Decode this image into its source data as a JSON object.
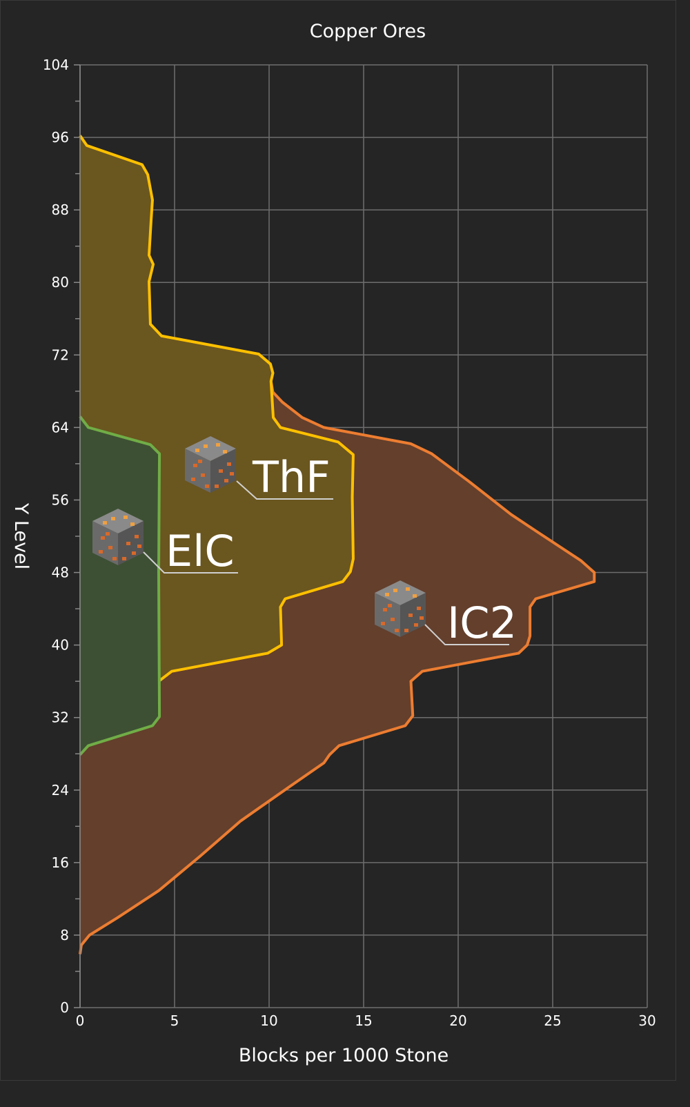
{
  "chart_data": {
    "type": "area",
    "title": "Copper Ores",
    "xlabel": "Blocks per 1000 Stone",
    "ylabel": "Y Level",
    "xlim": [
      0,
      30
    ],
    "ylim": [
      0,
      104
    ],
    "x_ticks": [
      "0",
      "5",
      "10",
      "15",
      "20",
      "25",
      "30"
    ],
    "y_ticks": [
      "0",
      "8",
      "16",
      "24",
      "32",
      "40",
      "48",
      "56",
      "64",
      "72",
      "80",
      "88",
      "96",
      "104"
    ],
    "grid": true,
    "orientation": "horizontal-profile",
    "background": "#252525",
    "series": [
      {
        "name": "IC2",
        "line_color": "#ed7d31",
        "fill_color": "#633f2c",
        "points": [
          [
            10.1,
            69.1
          ],
          [
            10.2,
            67.9
          ],
          [
            10.7,
            66.8
          ],
          [
            11.75,
            65.1
          ],
          [
            12.9,
            64.0
          ],
          [
            17.5,
            62.2
          ],
          [
            18.6,
            61.1
          ],
          [
            20.6,
            58.0
          ],
          [
            22.8,
            54.4
          ],
          [
            24.1,
            52.6
          ],
          [
            26.5,
            49.3
          ],
          [
            27.2,
            48.0
          ],
          [
            27.2,
            47.0
          ],
          [
            24.1,
            45.1
          ],
          [
            23.8,
            44.2
          ],
          [
            23.8,
            41.0
          ],
          [
            23.65,
            40.0
          ],
          [
            23.2,
            39.1
          ],
          [
            18.1,
            37.1
          ],
          [
            17.5,
            36.0
          ],
          [
            17.6,
            32.2
          ],
          [
            17.2,
            31.1
          ],
          [
            13.7,
            28.9
          ],
          [
            13.2,
            27.9
          ],
          [
            12.9,
            27.0
          ],
          [
            11.1,
            24.4
          ],
          [
            8.5,
            20.6
          ],
          [
            6.35,
            16.7
          ],
          [
            4.16,
            12.9
          ],
          [
            1.97,
            9.9
          ],
          [
            0.5,
            8.0
          ],
          [
            0.07,
            6.9
          ],
          [
            0,
            5.9
          ]
        ]
      },
      {
        "name": "ThF",
        "line_color": "#ffc000",
        "fill_color": "#6a561f",
        "points": [
          [
            0,
            96.2
          ],
          [
            0.36,
            95.1
          ],
          [
            3.28,
            93.0
          ],
          [
            3.58,
            91.9
          ],
          [
            3.83,
            89.1
          ],
          [
            3.76,
            86.9
          ],
          [
            3.65,
            83.0
          ],
          [
            3.87,
            82.0
          ],
          [
            3.65,
            80.1
          ],
          [
            3.72,
            75.4
          ],
          [
            4.31,
            74.1
          ],
          [
            9.45,
            72.1
          ],
          [
            10.07,
            71.0
          ],
          [
            10.2,
            70.0
          ],
          [
            10.1,
            69.1
          ],
          [
            10.22,
            65.1
          ],
          [
            10.6,
            64.0
          ],
          [
            13.65,
            62.4
          ],
          [
            14.45,
            61.0
          ],
          [
            14.4,
            56.3
          ],
          [
            14.45,
            49.5
          ],
          [
            14.3,
            48.1
          ],
          [
            13.9,
            47.0
          ],
          [
            10.85,
            45.1
          ],
          [
            10.6,
            44.2
          ],
          [
            10.66,
            40.0
          ],
          [
            9.93,
            39.1
          ],
          [
            4.85,
            37.1
          ],
          [
            4.16,
            36.0
          ]
        ]
      },
      {
        "name": "ElC",
        "line_color": "#70ad47",
        "fill_color": "#3d5033",
        "points": [
          [
            0,
            65.2
          ],
          [
            0.44,
            64.0
          ],
          [
            3.72,
            62.1
          ],
          [
            4.2,
            61.1
          ],
          [
            4.16,
            48.0
          ],
          [
            4.2,
            32.1
          ],
          [
            3.83,
            31.1
          ],
          [
            0.44,
            28.9
          ],
          [
            0,
            27.9
          ]
        ]
      }
    ],
    "annotations": [
      {
        "text": "ThF",
        "icon": "copper-ore-block-icon"
      },
      {
        "text": "ElC",
        "icon": "copper-ore-block-icon"
      },
      {
        "text": "IC2",
        "icon": "copper-ore-block-icon"
      }
    ]
  }
}
